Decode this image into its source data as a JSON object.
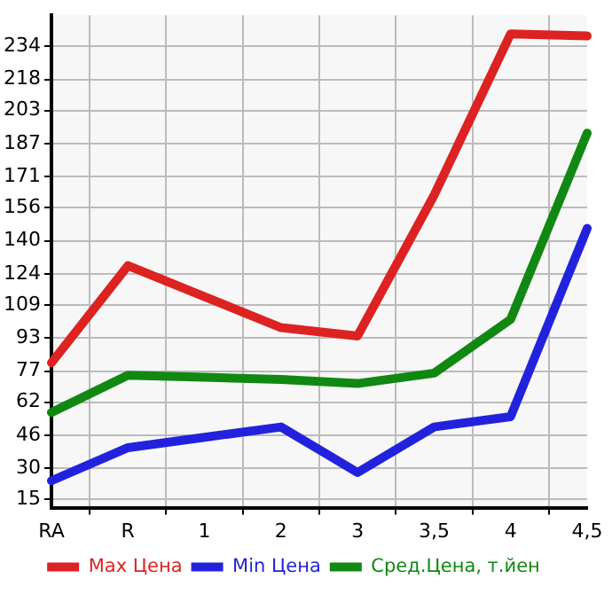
{
  "chart_data": {
    "type": "line",
    "categories": [
      "RA",
      "R",
      "1",
      "2",
      "3",
      "3,5",
      "4",
      "4,5"
    ],
    "series": [
      {
        "name": "Max Цена",
        "color": "#dd2222",
        "values": [
          81,
          128,
          113,
          98,
          94,
          162,
          240,
          239
        ]
      },
      {
        "name": "Min Цена",
        "color": "#2222dd",
        "values": [
          24,
          40,
          45,
          50,
          28,
          50,
          55,
          146
        ]
      },
      {
        "name": "Сред.Цена, т.йен",
        "color": "#118811",
        "values": [
          57,
          75,
          74,
          73,
          71,
          76,
          102,
          192
        ]
      }
    ],
    "ylim": [
      11,
      249
    ],
    "yticks": [
      15,
      30,
      46,
      62,
      77,
      93,
      109,
      124,
      140,
      156,
      171,
      187,
      203,
      218,
      234
    ],
    "grid": true,
    "legend": "bottom",
    "marker": "none",
    "line_style": "solid"
  }
}
